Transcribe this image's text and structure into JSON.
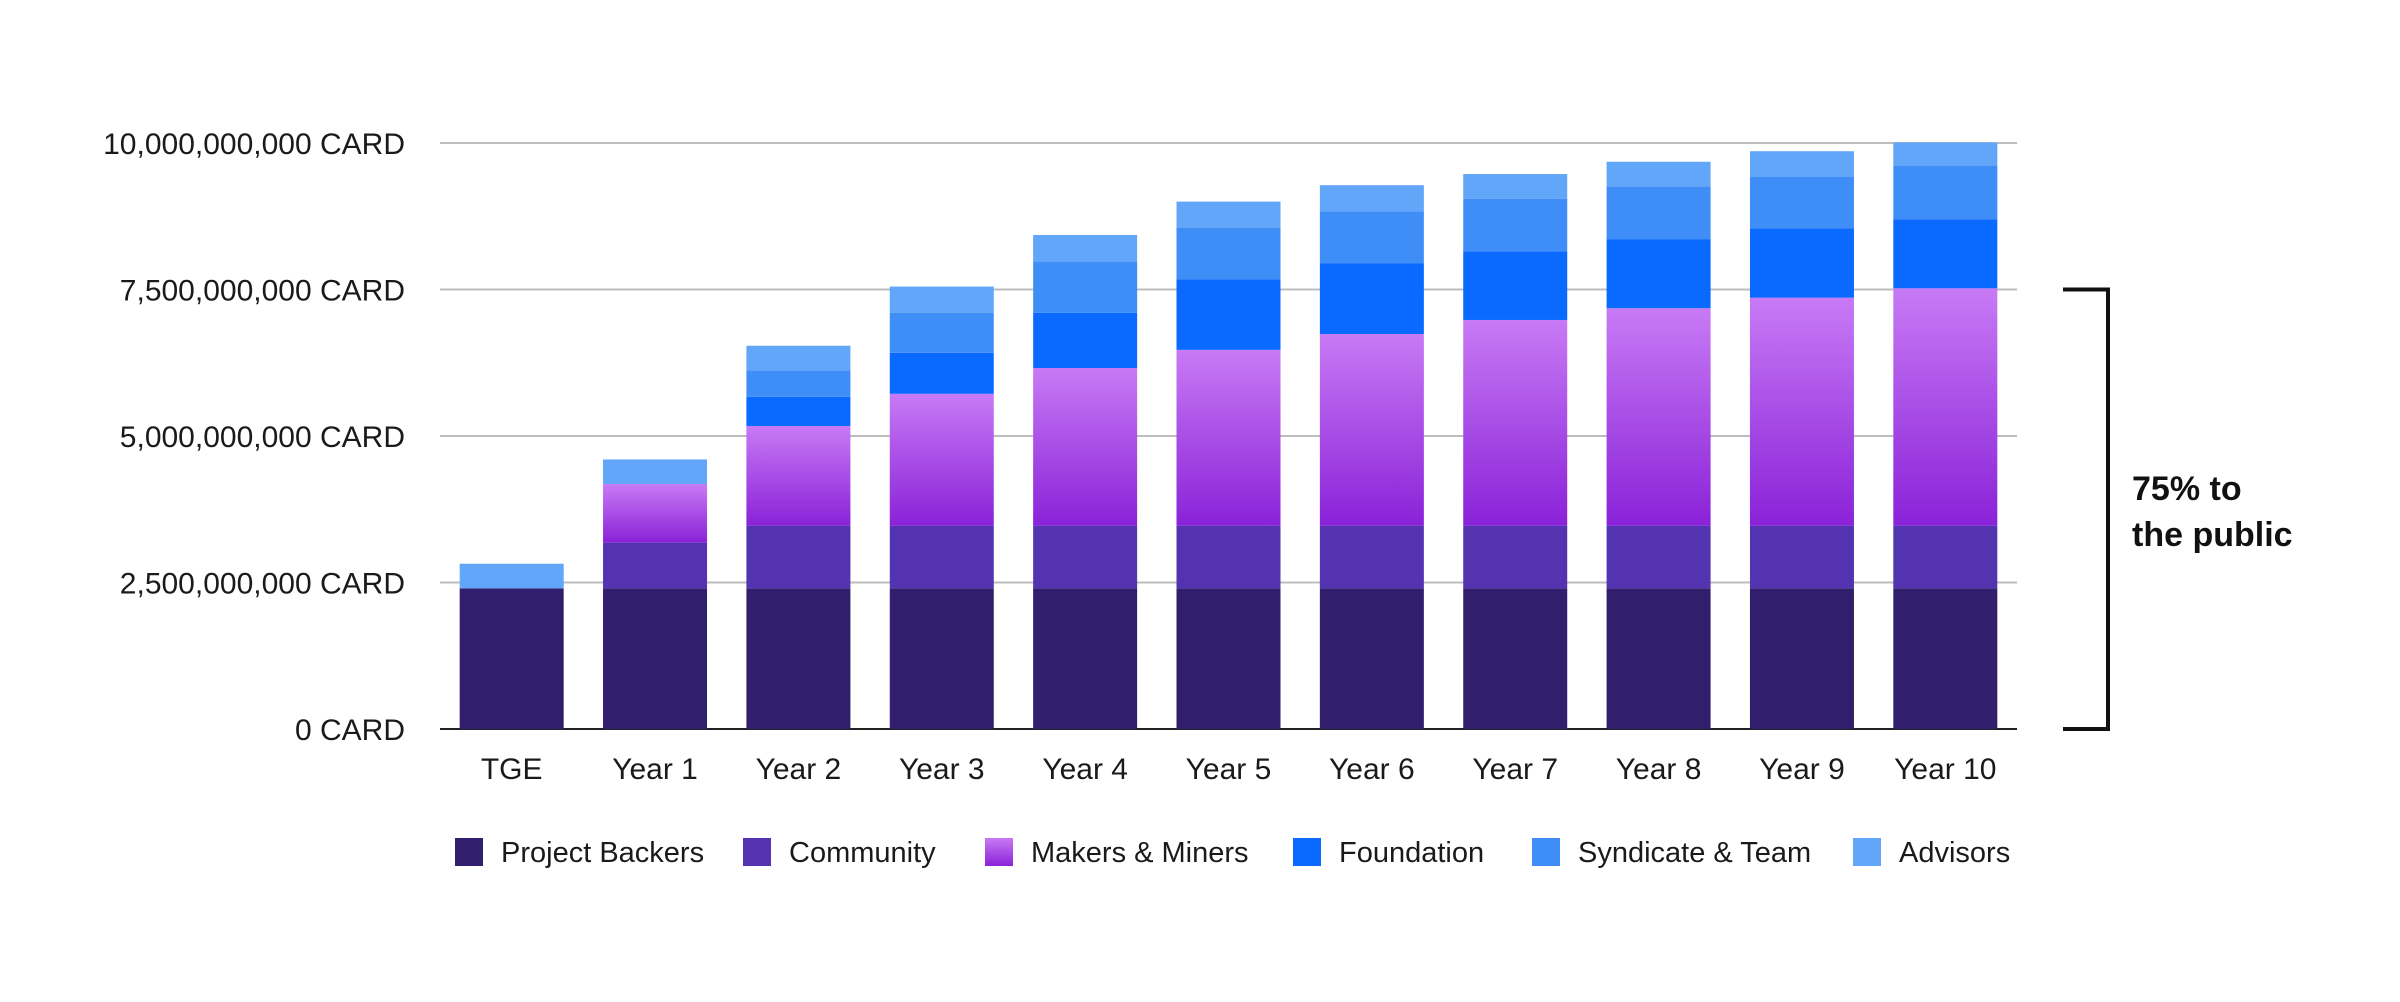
{
  "chart_data": {
    "type": "bar",
    "stacked": true,
    "title": "",
    "xlabel": "",
    "ylabel": "",
    "categories": [
      "TGE",
      "Year 1",
      "Year 2",
      "Year 3",
      "Year 4",
      "Year 5",
      "Year 6",
      "Year 7",
      "Year 8",
      "Year 9",
      "Year 10"
    ],
    "unit_suffix": "CARD",
    "ylim": [
      0,
      10000000000
    ],
    "yticks": [
      0,
      2500000000,
      5000000000,
      7500000000,
      10000000000
    ],
    "ytick_labels": [
      "0 CARD",
      "2,500,000,000 CARD",
      "5,000,000,000 CARD",
      "7,500,000,000 CARD",
      "10,000,000,000 CARD"
    ],
    "grid": true,
    "legend_position": "bottom",
    "series": [
      {
        "name": "Project Backers",
        "color": "#311f6e",
        "values": [
          2400000000,
          2400000000,
          2400000000,
          2400000000,
          2400000000,
          2400000000,
          2400000000,
          2400000000,
          2400000000,
          2400000000,
          2400000000
        ]
      },
      {
        "name": "Community",
        "color": "#5333b0",
        "values": [
          0,
          780000000,
          1070000000,
          1070000000,
          1070000000,
          1070000000,
          1070000000,
          1070000000,
          1070000000,
          1070000000,
          1070000000
        ]
      },
      {
        "name": "Makers & Miners",
        "color": "#b05ee8",
        "gradient": [
          "#c87af5",
          "#8a22d8"
        ],
        "values": [
          0,
          1000000000,
          1700000000,
          2250000000,
          2690000000,
          3000000000,
          3270000000,
          3510000000,
          3710000000,
          3890000000,
          4050000000
        ]
      },
      {
        "name": "Foundation",
        "color": "#0a6aff",
        "values": [
          0,
          0,
          500000000,
          700000000,
          940000000,
          1200000000,
          1210000000,
          1170000000,
          1180000000,
          1180000000,
          1180000000
        ]
      },
      {
        "name": "Syndicate & Team",
        "color": "#3f8ef8",
        "values": [
          0,
          0,
          450000000,
          680000000,
          880000000,
          880000000,
          880000000,
          900000000,
          900000000,
          880000000,
          920000000
        ]
      },
      {
        "name": "Advisors",
        "color": "#61a6f8",
        "values": [
          420000000,
          420000000,
          420000000,
          450000000,
          450000000,
          450000000,
          450000000,
          420000000,
          420000000,
          440000000,
          390000000
        ]
      }
    ],
    "annotation": {
      "lines": [
        "75%",
        "to",
        "the public"
      ],
      "range": [
        0,
        7500000000
      ],
      "bracket_position": "right"
    }
  },
  "annotation_text": {
    "line1": "75% to",
    "line2": "the public"
  }
}
